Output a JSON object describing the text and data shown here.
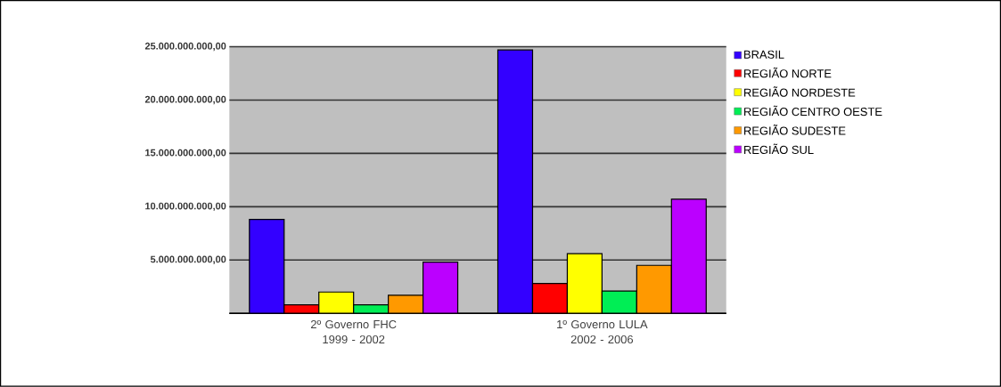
{
  "chart_data": {
    "type": "bar",
    "categories": [
      "2º Governo FHC 1999 - 2002",
      "1º Governo LULA 2002 - 2006"
    ],
    "series": [
      {
        "name": "BRASIL",
        "color": "#3300ff",
        "values": [
          8800000000,
          24700000000
        ]
      },
      {
        "name": "REGIÃO NORTE",
        "color": "#ff0000",
        "values": [
          800000000,
          2800000000
        ]
      },
      {
        "name": "REGIÃO NORDESTE",
        "color": "#ffff00",
        "values": [
          2000000000,
          5600000000
        ]
      },
      {
        "name": "REGIÃO CENTRO OESTE",
        "color": "#00ee55",
        "values": [
          800000000,
          2100000000
        ]
      },
      {
        "name": "REGIÃO SUDESTE",
        "color": "#ff9900",
        "values": [
          1700000000,
          4500000000
        ]
      },
      {
        "name": "REGIÃO SUL",
        "color": "#bb00ff",
        "values": [
          4800000000,
          10700000000
        ]
      }
    ],
    "ylim": [
      0,
      25000000000
    ],
    "yticks": [
      {
        "value": 0,
        "label": null
      },
      {
        "value": 5000000000,
        "label": "5.000.000.000,00"
      },
      {
        "value": 10000000000,
        "label": "10.000.000.000,00"
      },
      {
        "value": 15000000000,
        "label": "15.000.000.000,00"
      },
      {
        "value": 20000000000,
        "label": "20.000.000.000,00"
      },
      {
        "value": 25000000000,
        "label": "25.000.000.000,00"
      }
    ],
    "grid": "y",
    "legend": "right"
  }
}
